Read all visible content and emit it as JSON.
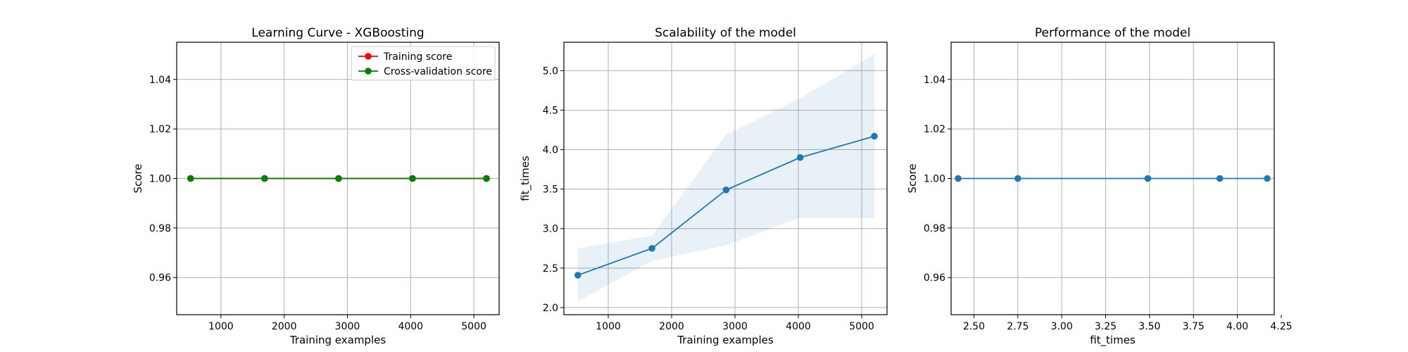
{
  "chart_data": [
    {
      "type": "line",
      "title": "Learning Curve - XGBoosting",
      "xlabel": "Training examples",
      "ylabel": "Score",
      "xlim": [
        300,
        5400
      ],
      "ylim": [
        0.945,
        1.055
      ],
      "xticks": [
        1000,
        2000,
        3000,
        4000,
        5000
      ],
      "yticks": [
        0.96,
        0.98,
        1.0,
        1.02,
        1.04
      ],
      "ytick_labels": [
        "0.96",
        "0.98",
        "1.00",
        "1.02",
        "1.04"
      ],
      "grid": true,
      "legend_position": "top-right",
      "x": [
        520,
        1690,
        2860,
        4030,
        5200
      ],
      "series": [
        {
          "name": "Training score",
          "color": "#ff0000",
          "values": [
            1.0,
            1.0,
            1.0,
            1.0,
            1.0
          ]
        },
        {
          "name": "Cross-validation score",
          "color": "#008000",
          "values": [
            1.0,
            1.0,
            1.0,
            1.0,
            1.0
          ]
        }
      ]
    },
    {
      "type": "line",
      "title": "Scalability of the model",
      "xlabel": "Training examples",
      "ylabel": "fit_times",
      "xlim": [
        300,
        5400
      ],
      "ylim": [
        1.91,
        5.36
      ],
      "xticks": [
        1000,
        2000,
        3000,
        4000,
        5000
      ],
      "yticks": [
        2.0,
        2.5,
        3.0,
        3.5,
        4.0,
        4.5,
        5.0
      ],
      "ytick_labels": [
        "2.0",
        "2.5",
        "3.0",
        "3.5",
        "4.0",
        "4.5",
        "5.0"
      ],
      "grid": true,
      "x": [
        520,
        1690,
        2860,
        4030,
        5200
      ],
      "series": [
        {
          "color": "#1f77b4",
          "values": [
            2.41,
            2.75,
            3.49,
            3.9,
            4.17
          ]
        }
      ],
      "band": {
        "color": "#1f77b4",
        "lower": [
          2.08,
          2.59,
          2.79,
          3.14,
          3.13
        ],
        "upper": [
          2.75,
          2.91,
          4.19,
          4.65,
          5.21
        ]
      }
    },
    {
      "type": "line",
      "title": "Performance of the model",
      "xlabel": "fit_times",
      "ylabel": "Score",
      "xlim": [
        2.37,
        4.21
      ],
      "ylim": [
        0.945,
        1.055
      ],
      "xticks": [
        2.5,
        2.75,
        3.0,
        3.25,
        3.5,
        3.75,
        4.0,
        4.25
      ],
      "xtick_labels": [
        "2.50",
        "2.75",
        "3.00",
        "3.25",
        "3.50",
        "3.75",
        "4.00",
        "4.25"
      ],
      "yticks": [
        0.96,
        0.98,
        1.0,
        1.02,
        1.04
      ],
      "ytick_labels": [
        "0.96",
        "0.98",
        "1.00",
        "1.02",
        "1.04"
      ],
      "grid": true,
      "x": [
        2.41,
        2.75,
        3.49,
        3.9,
        4.17
      ],
      "series": [
        {
          "color": "#1f77b4",
          "values": [
            1.0,
            1.0,
            1.0,
            1.0,
            1.0
          ]
        }
      ]
    }
  ]
}
